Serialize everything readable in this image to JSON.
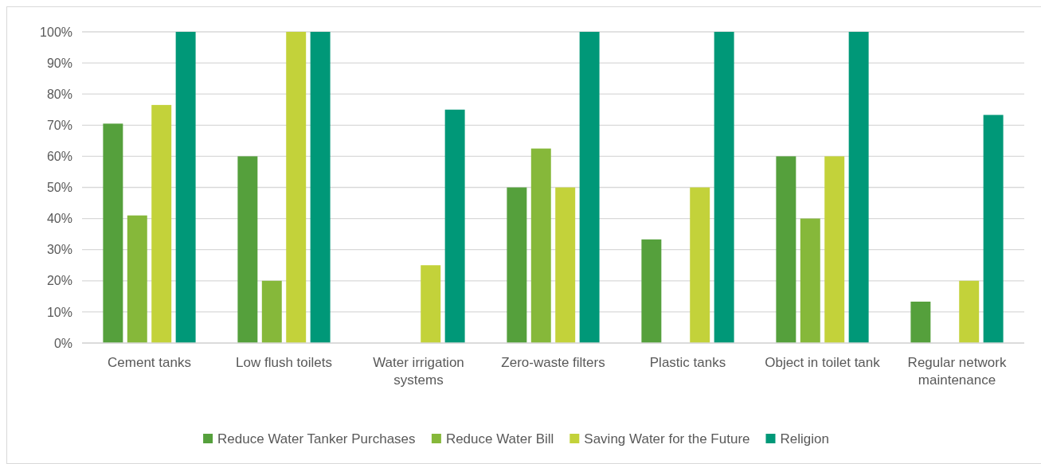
{
  "chart_data": {
    "type": "bar",
    "categories": [
      "Cement tanks",
      "Low flush toilets",
      "Water irrigation systems",
      "Zero-waste filters",
      "Plastic tanks",
      "Object in toilet tank",
      "Regular network maintenance"
    ],
    "series": [
      {
        "name": "Reduce Water Tanker Purchases",
        "color": "#55a03c",
        "values": [
          70.5,
          60,
          null,
          50,
          33.3,
          60,
          13.3
        ]
      },
      {
        "name": "Reduce Water Bill",
        "color": "#86b83a",
        "values": [
          41,
          20,
          null,
          62.5,
          null,
          40,
          null
        ]
      },
      {
        "name": "Saving Water for the Future",
        "color": "#c3d23a",
        "values": [
          76.5,
          100,
          25,
          50,
          50,
          60,
          20
        ]
      },
      {
        "name": "Religion",
        "color": "#009878",
        "values": [
          100,
          100,
          75,
          100,
          100,
          100,
          73.3
        ]
      }
    ],
    "ylim": [
      0,
      100
    ],
    "yticks": [
      {
        "value": 0,
        "label": "0%"
      },
      {
        "value": 10,
        "label": "10%"
      },
      {
        "value": 20,
        "label": "20%"
      },
      {
        "value": 30,
        "label": "30%"
      },
      {
        "value": 40,
        "label": "40%"
      },
      {
        "value": 50,
        "label": "50%"
      },
      {
        "value": 60,
        "label": "60%"
      },
      {
        "value": 70,
        "label": "70%"
      },
      {
        "value": 80,
        "label": "80%"
      },
      {
        "value": 90,
        "label": "90%"
      },
      {
        "value": 100,
        "label": "100%"
      }
    ],
    "grid": "y",
    "legend": "bottom"
  }
}
